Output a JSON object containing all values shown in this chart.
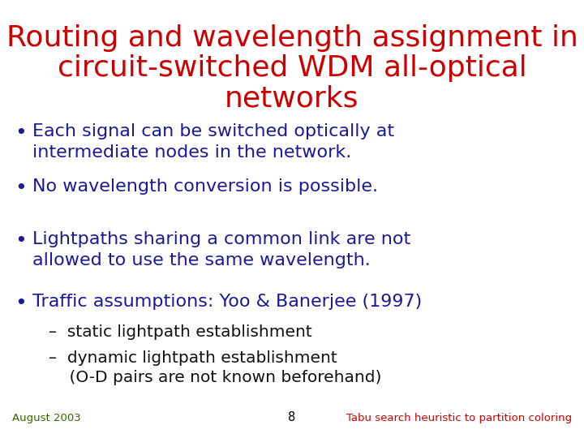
{
  "background_color": "#ffffff",
  "title_line1": "Routing and wavelength assignment in",
  "title_line2": "circuit-switched WDM all-optical",
  "title_line3": "networks",
  "title_color": "#cc0000",
  "title_fontsize": 26,
  "title_fontweight": "normal",
  "bullet_color": "#1a1a99",
  "bullet_fontsize": 16,
  "sub_bullet_color": "#111111",
  "sub_bullet_fontsize": 14.5,
  "bullets": [
    "Each signal can be switched optically at\nintermediate nodes in the network.",
    "No wavelength conversion is possible.",
    "Lightpaths sharing a common link are not\nallowed to use the same wavelength.",
    "Traffic assumptions: Yoo & Banerjee (1997)"
  ],
  "sub_bullets": [
    "–  static lightpath establishment",
    "–  dynamic lightpath establishment\n    (O-D pairs are not known beforehand)"
  ],
  "footer_left": "August 2003",
  "footer_center": "8",
  "footer_right": "Tabu search heuristic to partition coloring",
  "footer_color": "#336600",
  "footer_right_color": "#cc0000",
  "footer_fontsize": 9.5
}
